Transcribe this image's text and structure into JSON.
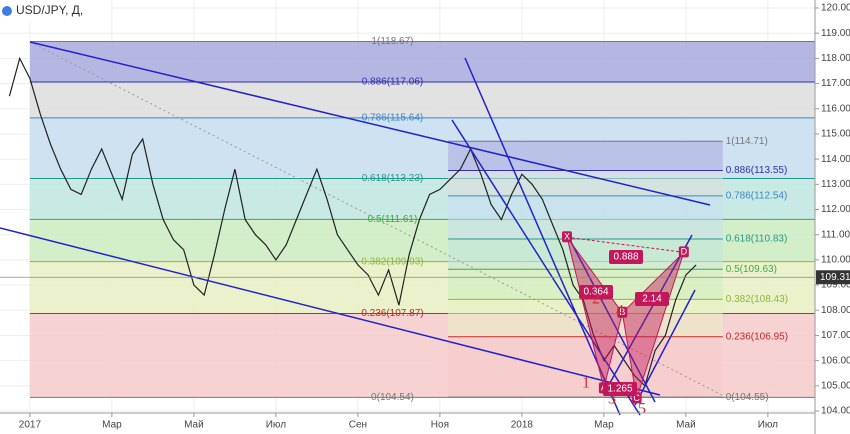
{
  "chart_data": {
    "type": "line",
    "title": "USD/JPY, Д,",
    "x": [
      -0.5,
      -0.25,
      0,
      0.25,
      0.5,
      0.75,
      1,
      1.25,
      1.5,
      1.75,
      2,
      2.25,
      2.5,
      2.75,
      3,
      3.25,
      3.5,
      3.75,
      4,
      4.25,
      4.5,
      4.75,
      5,
      5.25,
      5.5,
      5.75,
      6,
      6.25,
      6.5,
      6.75,
      7,
      7.25,
      7.5,
      7.75,
      8,
      8.25,
      8.5,
      8.75,
      9,
      9.25,
      9.5,
      9.75,
      10,
      10.25,
      10.5,
      10.75,
      11,
      11.25,
      11.5,
      11.75,
      12,
      12.25,
      12.5,
      12.75,
      13,
      13.25,
      13.5,
      13.75,
      14,
      14.25,
      14.5,
      14.75,
      15,
      15.25,
      15.5,
      15.75,
      16,
      16.25
    ],
    "series": [
      {
        "color": "#222222",
        "values": [
          116.5,
          118.0,
          117.2,
          115.8,
          114.6,
          113.6,
          112.8,
          112.6,
          113.6,
          114.4,
          113.4,
          112.4,
          114.2,
          114.8,
          113.0,
          111.6,
          110.8,
          110.4,
          109.0,
          108.6,
          110.2,
          112.0,
          113.6,
          111.6,
          111.0,
          110.6,
          110.0,
          110.6,
          111.6,
          112.6,
          113.6,
          112.4,
          111.0,
          110.4,
          109.8,
          109.4,
          108.6,
          109.6,
          108.2,
          110.2,
          111.6,
          112.6,
          112.8,
          113.2,
          113.6,
          114.4,
          113.4,
          112.2,
          111.6,
          112.6,
          113.4,
          113.0,
          112.4,
          111.4,
          110.4,
          109.0,
          108.4,
          107.0,
          106.0,
          106.6,
          106.0,
          105.4,
          105.0,
          106.4,
          107.0,
          108.4,
          109.4,
          109.8
        ]
      }
    ],
    "xlim": [
      -0.73,
      19.15
    ],
    "ylim": [
      104,
      120
    ],
    "xticks": [
      {
        "value": 0,
        "label": "2017"
      },
      {
        "value": 2,
        "label": "Мар"
      },
      {
        "value": 4,
        "label": "Май"
      },
      {
        "value": 6,
        "label": "Июл"
      },
      {
        "value": 8,
        "label": "Сен"
      },
      {
        "value": 10,
        "label": "Ноя"
      },
      {
        "value": 12,
        "label": "2018"
      },
      {
        "value": 14,
        "label": "Мар"
      },
      {
        "value": 16,
        "label": "Май"
      },
      {
        "value": 18,
        "label": "Июл"
      }
    ],
    "yticks": [
      {
        "value": 104,
        "label": "104.00"
      },
      {
        "value": 105,
        "label": "105.00"
      },
      {
        "value": 106,
        "label": "106.00"
      },
      {
        "value": 107,
        "label": "107.00"
      },
      {
        "value": 108,
        "label": "108.00"
      },
      {
        "value": 109,
        "label": "109.00"
      },
      {
        "value": 110,
        "label": "110.00"
      },
      {
        "value": 111,
        "label": "111.00"
      },
      {
        "value": 112,
        "label": "112.00"
      },
      {
        "value": 113,
        "label": "113.00"
      },
      {
        "value": 114,
        "label": "114.00"
      },
      {
        "value": 115,
        "label": "115.00"
      },
      {
        "value": 116,
        "label": "116.00"
      },
      {
        "value": 117,
        "label": "117.00"
      },
      {
        "value": 118,
        "label": "118.00"
      },
      {
        "value": 119,
        "label": "119.00"
      },
      {
        "value": 120,
        "label": "120.00"
      }
    ],
    "grid": true,
    "last_price": {
      "value": 109.31,
      "label": "109.31"
    },
    "zone_colors": [
      "#a9a9de",
      "#dddddd",
      "#c6ddf0",
      "#c0e6df",
      "#cbecc0",
      "#e8f0c2",
      "#f5caca"
    ],
    "level_colors": [
      "#777777",
      "#3030a8",
      "#3d86c8",
      "#22998a",
      "#3fa845",
      "#8bb83a",
      "#c62828",
      "#777777"
    ],
    "fib_retracements": [
      {
        "x_range": [
          0,
          19.15
        ],
        "levels": [
          {
            "value": 118.67,
            "label": "1(118.67)"
          },
          {
            "value": 117.06,
            "label": "0.886(117.06)"
          },
          {
            "value": 115.64,
            "label": "0.786(115.64)"
          },
          {
            "value": 113.23,
            "label": "0.618(113.23)"
          },
          {
            "value": 111.61,
            "label": "0.5(111.61)"
          },
          {
            "value": 109.93,
            "label": "0.382(109.93)"
          },
          {
            "value": 107.87,
            "label": "0.236(107.87)"
          },
          {
            "value": 104.54,
            "label": "0(104.54)"
          }
        ]
      },
      {
        "x_range": [
          10.2,
          16.9
        ],
        "levels": [
          {
            "value": 114.71,
            "label": "1(114.71)"
          },
          {
            "value": 113.55,
            "label": "0.886(113.55)"
          },
          {
            "value": 112.54,
            "label": "0.786(112.54)"
          },
          {
            "value": 110.83,
            "label": "0.618(110.83)"
          },
          {
            "value": 109.63,
            "label": "0.5(109.63)"
          },
          {
            "value": 108.43,
            "label": "0.382(108.43)"
          },
          {
            "value": 106.95,
            "label": "0.236(106.95)"
          },
          {
            "value": 104.55,
            "label": "0(104.55)"
          }
        ]
      }
    ],
    "pattern": {
      "points": [
        {
          "label": "X",
          "x": 13.1,
          "y": 110.9
        },
        {
          "label": "A",
          "x": 14.0,
          "y": 104.9
        },
        {
          "label": "B",
          "x": 14.45,
          "y": 107.9
        },
        {
          "label": "C",
          "x": 14.8,
          "y": 104.5
        },
        {
          "label": "D",
          "x": 15.95,
          "y": 110.3
        }
      ],
      "ratios": [
        0.364,
        0.888,
        1.265,
        2.14
      ],
      "color": "#c2185b"
    },
    "waves": [
      1,
      2,
      3,
      4,
      5
    ]
  }
}
